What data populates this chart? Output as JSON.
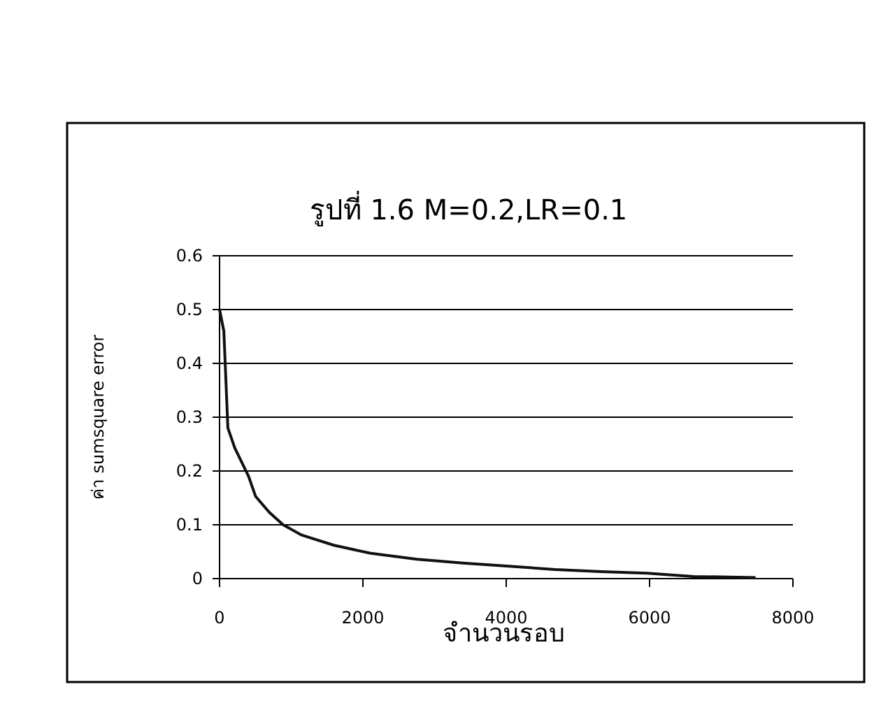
{
  "chart_data": {
    "type": "line",
    "title": "รูปที่ 1.6 M=0.2,LR=0.1",
    "xlabel": "จำนวนรอบ",
    "ylabel": "ค่า sumsquare error",
    "series": [
      {
        "color": "#111111",
        "x": [
          0,
          60,
          116,
          212,
          405,
          502,
          695,
          887,
          1145,
          1595,
          2110,
          2752,
          3395,
          4040,
          4682,
          5325,
          5968,
          6611,
          7479
        ],
        "values": [
          0.5,
          0.46,
          0.28,
          0.243,
          0.19,
          0.153,
          0.123,
          0.1,
          0.081,
          0.062,
          0.047,
          0.036,
          0.029,
          0.023,
          0.017,
          0.013,
          0.01,
          0.004,
          0.002
        ]
      }
    ],
    "xlim": [
      0,
      8000
    ],
    "xticks": [
      0,
      2000,
      4000,
      6000,
      8000
    ],
    "ylim": [
      0,
      0.6
    ],
    "yticks": [
      0,
      0.1,
      0.2,
      0.3,
      0.4,
      0.5,
      0.6
    ],
    "grid": "y",
    "marker": "none",
    "line_style": "solid"
  }
}
